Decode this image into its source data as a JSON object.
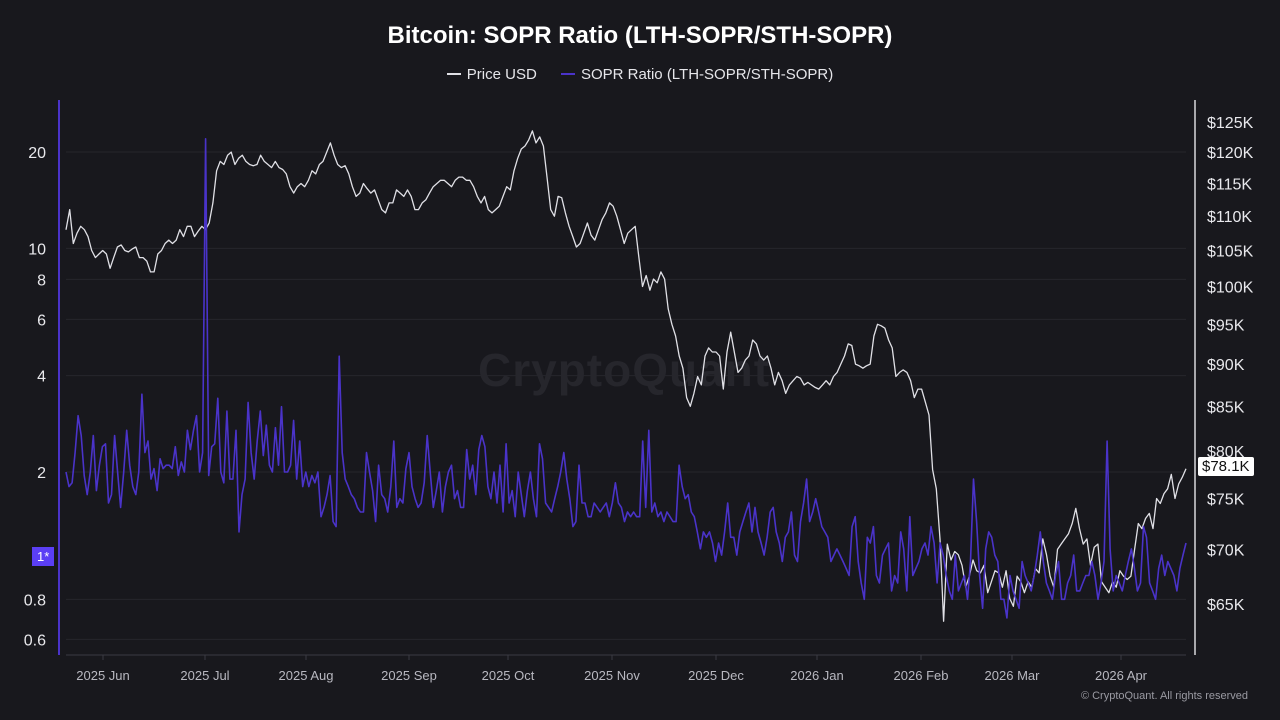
{
  "chart_data": {
    "type": "line",
    "title": "Bitcoin: SOPR Ratio (LTH-SOPR/STH-SOPR)",
    "legend": [
      {
        "name": "Price USD",
        "color": "#e0e0e6"
      },
      {
        "name": "SOPR Ratio (LTH-SOPR/STH-SOPR)",
        "color": "#4a33c9"
      }
    ],
    "legend_position": "top-center",
    "x_tick_labels": [
      "2025 Jun",
      "2025 Jul",
      "2025 Aug",
      "2025 Sep",
      "2025 Oct",
      "2025 Nov",
      "2025 Dec",
      "2026 Jan",
      "2026 Feb",
      "2026 Mar",
      "2026 Apr"
    ],
    "left_axis": {
      "scale": "log",
      "ticks": [
        "20",
        "10",
        "8",
        "6",
        "4",
        "2",
        "0.8",
        "0.6"
      ],
      "tick_values": [
        20,
        10,
        8,
        6,
        4,
        2,
        0.8,
        0.6
      ],
      "range": [
        0.55,
        30
      ]
    },
    "right_axis": {
      "scale": "log",
      "ticks": [
        "$125K",
        "$120K",
        "$115K",
        "$110K",
        "$105K",
        "$100K",
        "$95K",
        "$90K",
        "$85K",
        "$80K",
        "$75K",
        "$70K",
        "$65K"
      ],
      "tick_values": [
        125000,
        120000,
        115000,
        110000,
        105000,
        100000,
        95000,
        90000,
        85000,
        80000,
        75000,
        70000,
        65000
      ],
      "range": [
        60000,
        128000
      ]
    },
    "grid": true,
    "series": [
      {
        "name": "Price USD",
        "axis": "right",
        "values": [
          108000,
          111000,
          106000,
          107500,
          108500,
          108000,
          107000,
          105000,
          104000,
          104500,
          105000,
          104500,
          102500,
          104000,
          105500,
          105800,
          105000,
          104800,
          105200,
          105500,
          104000,
          104000,
          103500,
          102000,
          102000,
          104500,
          105000,
          106000,
          106500,
          106000,
          106500,
          108000,
          107000,
          108500,
          108500,
          107000,
          107800,
          108500,
          108000,
          109000,
          112000,
          117000,
          118500,
          118000,
          119500,
          120000,
          118000,
          119000,
          119500,
          118500,
          118000,
          117800,
          118000,
          119500,
          118500,
          118000,
          117500,
          118500,
          117500,
          117200,
          116500,
          114500,
          113500,
          114500,
          115000,
          114500,
          115500,
          117000,
          116500,
          118000,
          118500,
          120000,
          121500,
          119500,
          118000,
          117500,
          117800,
          116500,
          114500,
          113000,
          113500,
          115000,
          114200,
          113500,
          114000,
          112500,
          111000,
          110500,
          112000,
          112000,
          114000,
          113500,
          113000,
          114000,
          113000,
          111000,
          111000,
          112000,
          112500,
          113500,
          114500,
          115000,
          115500,
          115500,
          115000,
          114500,
          115500,
          116000,
          116000,
          115500,
          115500,
          114500,
          113000,
          112000,
          113000,
          111000,
          110500,
          111000,
          111500,
          113000,
          114500,
          114000,
          117000,
          119000,
          120500,
          121000,
          122000,
          123500,
          121500,
          122500,
          121000,
          116000,
          111000,
          110000,
          113000,
          112800,
          110500,
          108500,
          107000,
          105500,
          106000,
          107500,
          109000,
          107200,
          106500,
          108000,
          109500,
          110500,
          112000,
          111500,
          110000,
          108000,
          106000,
          107500,
          108000,
          108500,
          104000,
          100000,
          101500,
          99500,
          101000,
          100500,
          102000,
          101000,
          97000,
          95000,
          93500,
          91000,
          89500,
          86000,
          85000,
          86500,
          88500,
          87500,
          91000,
          92000,
          91500,
          91500,
          91000,
          87000,
          91500,
          94000,
          91500,
          89000,
          89500,
          90500,
          91000,
          93000,
          92500,
          91000,
          90500,
          91000,
          89500,
          87500,
          89000,
          88000,
          86500,
          87500,
          88000,
          88500,
          88300,
          87500,
          87800,
          87500,
          87200,
          87000,
          87500,
          88000,
          87500,
          88500,
          89000,
          90000,
          91000,
          92500,
          92300,
          90000,
          89800,
          89500,
          89800,
          90000,
          93500,
          95000,
          94800,
          94500,
          93000,
          92000,
          88500,
          89000,
          89300,
          89000,
          88000,
          86000,
          87000,
          87000,
          85500,
          84000,
          78000,
          76000,
          71000,
          63500,
          70500,
          69000,
          69800,
          69500,
          68500,
          66500,
          67500,
          69000,
          68000,
          67800,
          68500,
          66000,
          67000,
          68000,
          67800,
          66500,
          68000,
          65500,
          64800,
          67500,
          67000,
          66000,
          67000,
          66500,
          68200,
          67800,
          71000,
          69500,
          67500,
          66500,
          70000,
          70500,
          71000,
          71500,
          72500,
          74000,
          72000,
          70500,
          71000,
          68500,
          70200,
          70500,
          67000,
          66500,
          66000,
          67000,
          66500,
          68000,
          67500,
          67200,
          67500,
          70000,
          72500,
          72000,
          73000,
          73500,
          72000,
          75000,
          74500,
          75500,
          76000,
          77500,
          75000,
          76500,
          77200,
          78100
        ]
      },
      {
        "name": "SOPR Ratio (LTH-SOPR/STH-SOPR)",
        "axis": "left",
        "values": [
          2.0,
          1.8,
          1.85,
          2.3,
          3.0,
          2.6,
          1.95,
          1.7,
          2.0,
          2.6,
          1.75,
          2.1,
          2.4,
          2.45,
          1.6,
          1.7,
          2.6,
          2.0,
          1.55,
          2.0,
          2.7,
          2.1,
          1.8,
          1.7,
          2.0,
          3.5,
          2.3,
          2.5,
          1.9,
          2.05,
          1.75,
          2.2,
          2.05,
          2.1,
          2.1,
          2.05,
          2.4,
          1.95,
          2.15,
          2.0,
          2.7,
          2.35,
          2.7,
          3.0,
          2.0,
          2.3,
          22,
          1.95,
          2.4,
          2.45,
          3.4,
          2.0,
          1.85,
          3.1,
          1.9,
          1.9,
          2.7,
          1.3,
          1.7,
          1.9,
          3.3,
          2.3,
          1.9,
          2.5,
          3.1,
          2.25,
          2.8,
          2.1,
          2.0,
          2.75,
          2.1,
          3.2,
          2.0,
          2.0,
          2.1,
          2.9,
          1.9,
          2.5,
          1.8,
          2.0,
          1.8,
          1.95,
          1.85,
          2.0,
          1.45,
          1.55,
          1.7,
          1.95,
          1.4,
          1.35,
          4.6,
          2.3,
          1.9,
          1.8,
          1.7,
          1.65,
          1.55,
          1.5,
          1.5,
          2.3,
          2.0,
          1.75,
          1.4,
          2.1,
          1.7,
          1.65,
          1.5,
          1.8,
          2.5,
          1.55,
          1.65,
          1.6,
          2.05,
          2.3,
          1.8,
          1.65,
          1.55,
          1.6,
          1.85,
          2.6,
          2.0,
          1.55,
          1.75,
          2.0,
          1.5,
          1.8,
          2.0,
          2.1,
          1.65,
          1.75,
          1.55,
          1.55,
          2.35,
          1.9,
          2.1,
          1.7,
          2.35,
          2.6,
          2.4,
          1.8,
          1.65,
          2.0,
          1.6,
          2.1,
          1.5,
          2.45,
          1.6,
          1.75,
          1.45,
          2.0,
          1.7,
          1.45,
          1.75,
          2.0,
          1.65,
          1.45,
          2.45,
          2.2,
          1.6,
          1.55,
          1.5,
          1.65,
          1.8,
          2.0,
          2.3,
          1.9,
          1.65,
          1.35,
          1.4,
          2.1,
          1.6,
          1.6,
          1.45,
          1.45,
          1.6,
          1.55,
          1.5,
          1.55,
          1.6,
          1.45,
          1.6,
          1.85,
          1.6,
          1.55,
          1.4,
          1.5,
          1.45,
          1.5,
          1.45,
          1.45,
          2.5,
          1.55,
          2.7,
          1.5,
          1.6,
          1.45,
          1.5,
          1.4,
          1.5,
          1.45,
          1.4,
          1.4,
          2.1,
          1.8,
          1.65,
          1.7,
          1.5,
          1.45,
          1.3,
          1.15,
          1.3,
          1.25,
          1.3,
          1.2,
          1.05,
          1.2,
          1.1,
          1.3,
          1.6,
          1.25,
          1.25,
          1.1,
          1.3,
          1.4,
          1.5,
          1.6,
          1.3,
          1.55,
          1.3,
          1.2,
          1.1,
          1.25,
          1.5,
          1.55,
          1.3,
          1.2,
          1.05,
          1.25,
          1.3,
          1.5,
          1.1,
          1.05,
          1.4,
          1.6,
          1.9,
          1.4,
          1.5,
          1.65,
          1.5,
          1.35,
          1.3,
          1.25,
          1.05,
          1.1,
          1.15,
          1.1,
          1.05,
          1.0,
          0.95,
          1.35,
          1.45,
          1.05,
          0.9,
          0.8,
          1.25,
          1.2,
          1.35,
          0.95,
          0.9,
          1.1,
          1.15,
          1.2,
          0.85,
          0.95,
          0.9,
          1.3,
          1.15,
          0.85,
          1.45,
          0.95,
          1.0,
          1.05,
          1.15,
          1.2,
          1.1,
          1.35,
          1.2,
          0.9,
          1.2,
          1.1,
          0.95,
          0.85,
          0.8,
          1.1,
          0.85,
          0.9,
          0.95,
          0.8,
          1.05,
          1.9,
          1.4,
          0.95,
          0.75,
          1.15,
          1.3,
          1.25,
          1.1,
          1.05,
          0.8,
          0.8,
          0.7,
          0.95,
          0.85,
          0.8,
          0.75,
          1.05,
          0.95,
          0.9,
          0.85,
          0.95,
          1.1,
          1.3,
          1.05,
          0.9,
          0.85,
          0.8,
          0.95,
          1.05,
          0.8,
          0.8,
          0.9,
          0.95,
          1.1,
          0.85,
          0.85,
          0.9,
          0.95,
          0.95,
          1.05,
          0.95,
          0.8,
          0.9,
          1.05,
          2.5,
          1.15,
          0.85,
          0.95,
          0.9,
          0.85,
          0.95,
          1.05,
          1.15,
          1.0,
          0.85,
          0.9,
          1.35,
          1.25,
          0.9,
          0.85,
          0.8,
          1.0,
          1.1,
          0.95,
          1.05,
          1.0,
          0.95,
          0.85,
          1.0,
          1.1,
          1.2
        ]
      }
    ],
    "current_price_label": "$78.1K",
    "ratio_marker_label": "1*",
    "watermark": "CryptoQuant"
  },
  "footer": {
    "copyright": "© CryptoQuant. All rights reserved"
  }
}
